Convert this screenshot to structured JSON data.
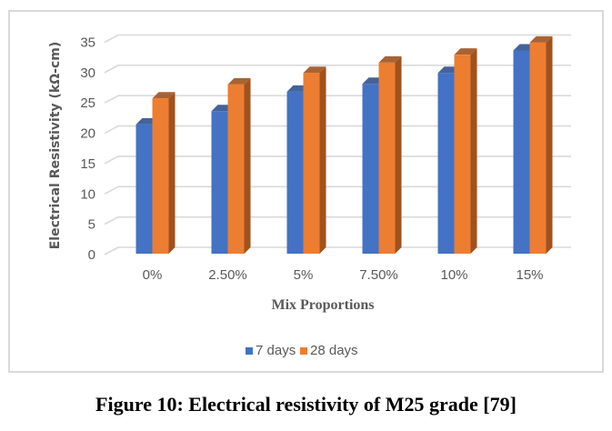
{
  "chart_data": {
    "type": "bar",
    "style": "3d-clustered-column",
    "title": "",
    "xlabel": "Mix Proportions",
    "ylabel": "Electrical Resistivity (kΩ-cm)",
    "categories": [
      "0%",
      "2.50%",
      "5%",
      "7.50%",
      "10%",
      "15%"
    ],
    "series": [
      {
        "name": "7 days",
        "color": "#4472c4",
        "side_color": "#2f528f",
        "values": [
          21.3,
          23.5,
          26.7,
          28.0,
          29.8,
          33.5
        ]
      },
      {
        "name": "28 days",
        "color": "#ed7d31",
        "side_color": "#a0521d",
        "values": [
          25.6,
          27.9,
          29.8,
          31.5,
          32.8,
          34.8
        ]
      }
    ],
    "ylim": [
      0,
      35
    ],
    "yticks": [
      "0",
      "5",
      "10",
      "15",
      "20",
      "25",
      "30",
      "35"
    ],
    "grid": true,
    "legend": "bottom-center"
  },
  "caption": "Figure 10: Electrical resistivity of M25 grade [79]"
}
